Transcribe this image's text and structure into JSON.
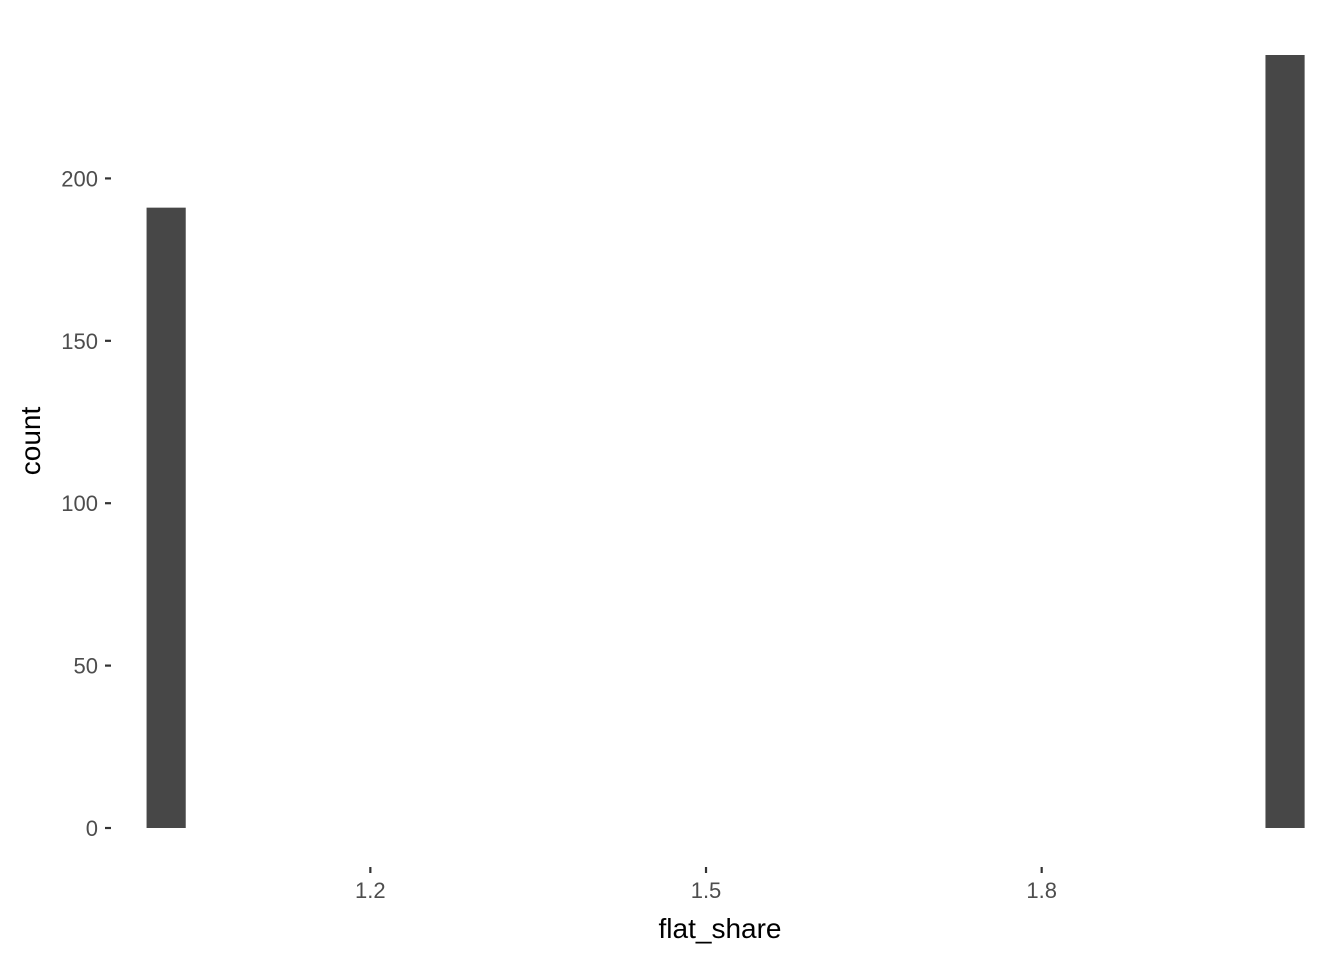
{
  "chart_data": {
    "type": "bar",
    "title": "",
    "xlabel": "flat_share",
    "ylabel": "count",
    "bars": [
      {
        "x_start": 1.0,
        "x_end": 1.035,
        "count": 191
      },
      {
        "x_start": 2.0,
        "x_end": 2.035,
        "count": 238
      }
    ],
    "xlim": [
      0.97,
      2.055
    ],
    "ylim": [
      0,
      238
    ],
    "x_ticks": [
      1.2,
      1.5,
      1.8
    ],
    "x_tick_labels": [
      "1.2",
      "1.5",
      "1.8"
    ],
    "y_ticks": [
      0,
      50,
      100,
      150,
      200
    ],
    "y_tick_labels": [
      "0",
      "50",
      "100",
      "150",
      "200"
    ],
    "grid": false,
    "legend": "none",
    "colors": {
      "bar": "#474747",
      "tick_label": "#4d4d4d",
      "axis_title": "#000000",
      "background": "#ffffff"
    }
  }
}
